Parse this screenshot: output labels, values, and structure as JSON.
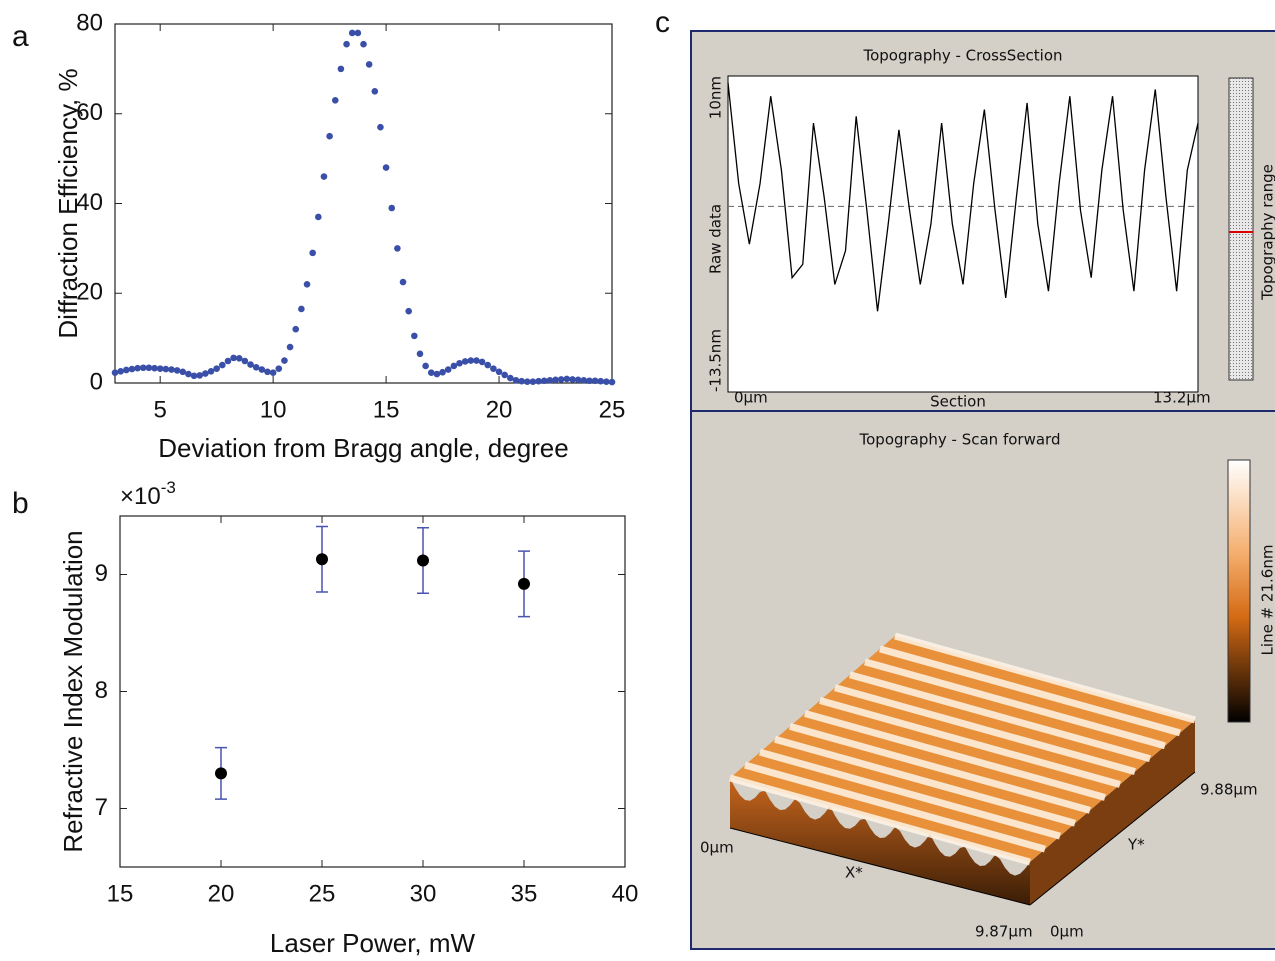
{
  "panel_labels": [
    "a",
    "b",
    "c"
  ],
  "chart_data": [
    {
      "type": "scatter",
      "color": "#3a4fa8",
      "xlabel": "Deviation from Bragg angle, degree",
      "ylabel": "Diffraction Efficiency, %",
      "x": [
        3,
        3.25,
        3.5,
        3.75,
        4,
        4.25,
        4.5,
        4.75,
        5,
        5.25,
        5.5,
        5.75,
        6,
        6.25,
        6.5,
        6.75,
        7,
        7.25,
        7.5,
        7.75,
        8,
        8.25,
        8.5,
        8.75,
        9,
        9.25,
        9.5,
        9.75,
        10,
        10.25,
        10.5,
        10.75,
        11,
        11.25,
        11.5,
        11.75,
        12,
        12.25,
        12.5,
        12.75,
        13,
        13.25,
        13.5,
        13.75,
        14,
        14.25,
        14.5,
        14.75,
        15,
        15.25,
        15.5,
        15.75,
        16,
        16.25,
        16.5,
        16.75,
        17,
        17.25,
        17.5,
        17.75,
        18,
        18.25,
        18.5,
        18.75,
        19,
        19.25,
        19.5,
        19.75,
        20,
        20.25,
        20.5,
        20.75,
        21,
        21.25,
        21.5,
        21.75,
        22,
        22.25,
        22.5,
        22.75,
        23,
        23.25,
        23.5,
        23.75,
        24,
        24.25,
        24.5,
        24.75,
        25
      ],
      "values": [
        2.3,
        2.6,
        2.9,
        3.1,
        3.3,
        3.4,
        3.4,
        3.3,
        3.2,
        3.1,
        3.0,
        2.8,
        2.5,
        2.0,
        1.6,
        1.7,
        2.1,
        2.6,
        3.2,
        4.0,
        4.9,
        5.6,
        5.5,
        4.9,
        4.1,
        3.5,
        3.0,
        2.5,
        2.3,
        3.2,
        5.0,
        8.0,
        12.0,
        16.5,
        22,
        29,
        37,
        46,
        55,
        63,
        70,
        75.5,
        78,
        78,
        75.5,
        71,
        65,
        57,
        48,
        39,
        30,
        22.5,
        16,
        10.5,
        6.5,
        3.8,
        2.3,
        2.0,
        2.4,
        3.0,
        3.8,
        4.4,
        4.8,
        5.0,
        5.0,
        4.7,
        4.0,
        3.2,
        2.5,
        1.8,
        1.1,
        0.6,
        0.4,
        0.3,
        0.3,
        0.4,
        0.5,
        0.6,
        0.7,
        0.8,
        0.9,
        0.8,
        0.7,
        0.6,
        0.5,
        0.5,
        0.4,
        0.3,
        0.2
      ],
      "xlim": [
        3,
        25
      ],
      "xticks": [
        5,
        10,
        15,
        20,
        25
      ],
      "ylim": [
        0,
        80
      ],
      "yticks": [
        0,
        20,
        40,
        60,
        80
      ]
    },
    {
      "type": "errorbar",
      "color": "#000000",
      "error_color": "#4a55b0",
      "xlabel": "Laser Power, mW",
      "ylabel": "Refractive Index Modulation",
      "y_multiplier": {
        "base": "×10",
        "exponent": "-3"
      },
      "x": [
        20,
        25,
        30,
        35
      ],
      "values": [
        7.3,
        9.13,
        9.12,
        8.92
      ],
      "errors": [
        0.22,
        0.28,
        0.28,
        0.28
      ],
      "xlim": [
        15,
        40
      ],
      "xticks": [
        15,
        20,
        25,
        30,
        35,
        40
      ],
      "ylim": [
        6.5,
        9.5
      ],
      "yticks": [
        7,
        8,
        9
      ]
    },
    {
      "type": "line",
      "color": "#000000",
      "title": "Topography - CrossSection",
      "xlabel": "Section",
      "ylabel": "Raw data",
      "x": [
        0,
        0.3,
        0.6,
        0.9,
        1.2,
        1.5,
        1.8,
        2.1,
        2.4,
        2.7,
        3.0,
        3.3,
        3.6,
        3.9,
        4.2,
        4.5,
        4.8,
        5.1,
        5.4,
        5.7,
        6.0,
        6.3,
        6.6,
        6.9,
        7.2,
        7.5,
        7.8,
        8.1,
        8.4,
        8.7,
        9.0,
        9.3,
        9.6,
        9.9,
        10.2,
        10.5,
        10.8,
        11.1,
        11.4,
        11.7,
        12.0,
        12.3,
        12.6,
        12.9,
        13.2
      ],
      "values": [
        9.5,
        2,
        -2.5,
        2,
        8.5,
        3,
        -5,
        -4,
        6.5,
        1,
        -5.5,
        -3,
        7,
        0,
        -7.5,
        -1,
        6,
        0,
        -5.5,
        -1,
        6.5,
        -1,
        -5.5,
        2,
        7.5,
        0,
        -6.5,
        1,
        8,
        -1,
        -6,
        2,
        8.5,
        0,
        -5,
        3,
        8.5,
        0,
        -6,
        3,
        9,
        1,
        -6,
        3,
        6.5
      ],
      "reference_line": 0.3,
      "xlim": [
        0,
        13.2
      ],
      "xticks": [
        {
          "value": 0,
          "label": "0µm"
        },
        {
          "value": 13.2,
          "label": "13.2µm"
        }
      ],
      "ylim": [
        -13.5,
        10
      ],
      "yticks": [
        {
          "value": -13.5,
          "label": "-13.5nm"
        },
        {
          "value": 10,
          "label": "10nm"
        }
      ]
    }
  ],
  "panel_c": {
    "range_label": "Topography range",
    "scan_title": "Topography - Scan forward",
    "scan_colorbar_label": "Line # 21.6nm",
    "x_start": "0µm",
    "x_axis": "X*",
    "x_end": "9.87µm",
    "y_start": "0µm",
    "y_axis": "Y*",
    "y_end": "9.88µm"
  }
}
